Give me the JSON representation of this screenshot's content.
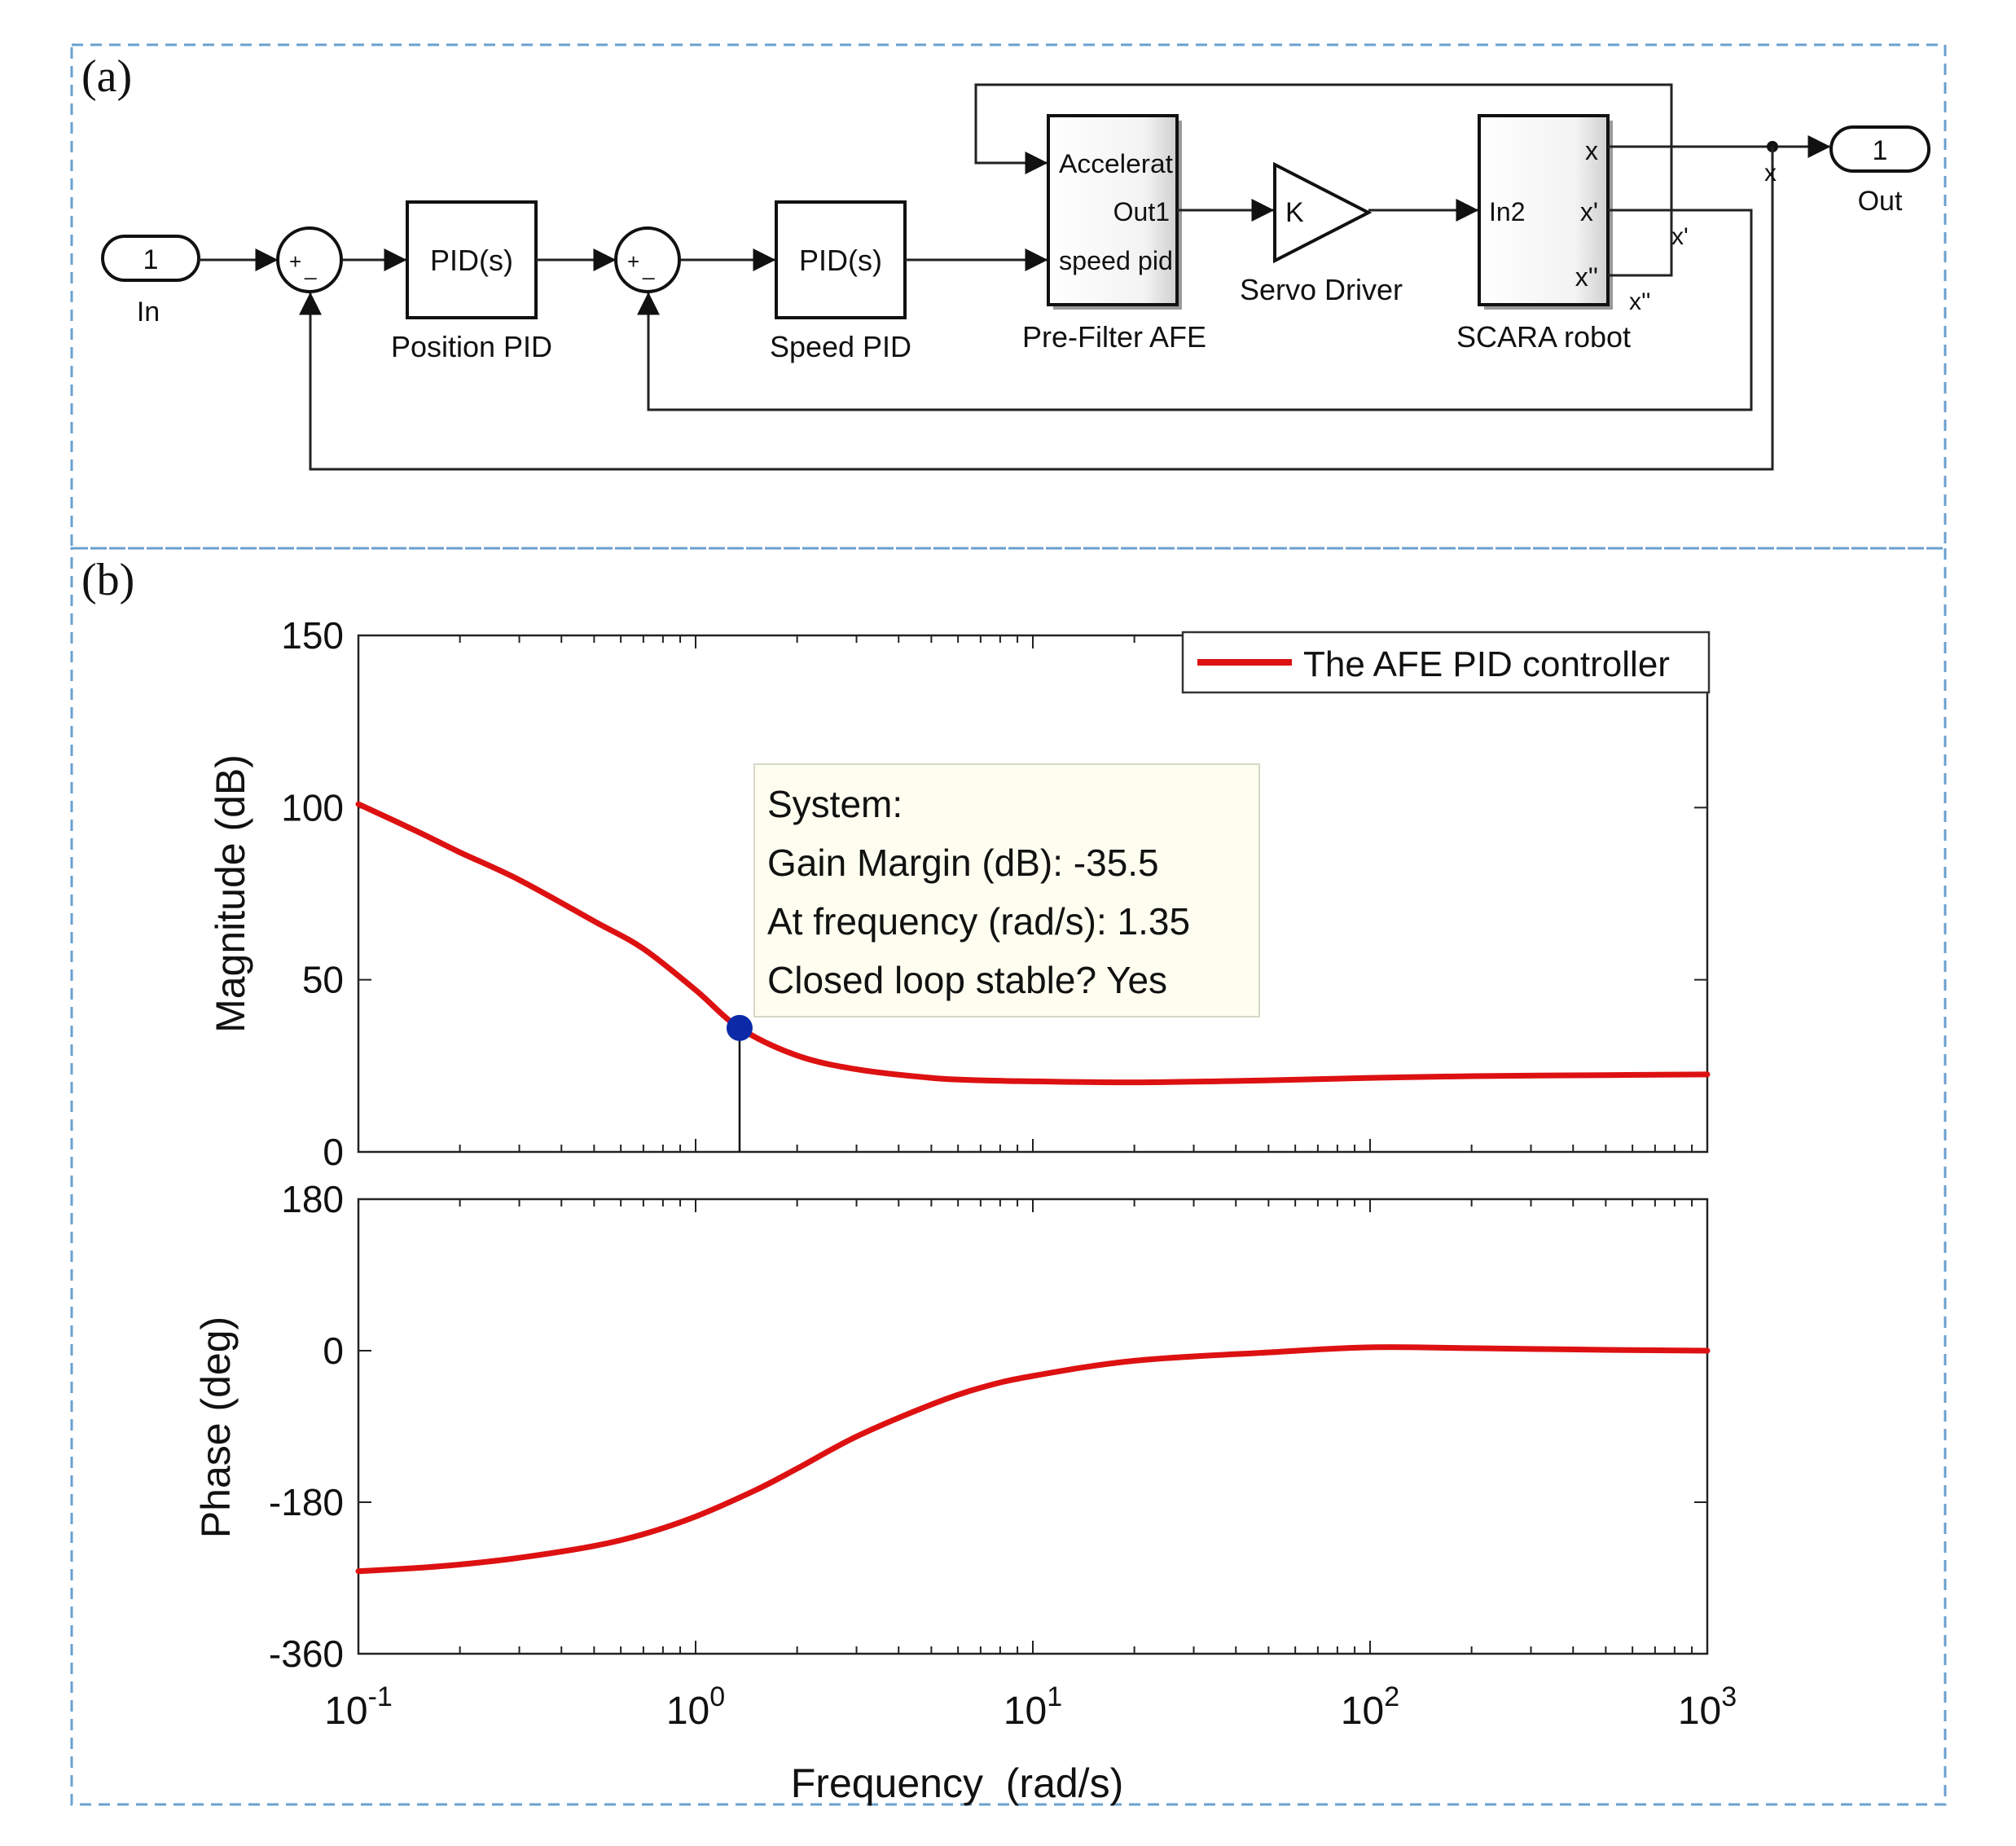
{
  "panel_a": {
    "label": "(a)",
    "inport": {
      "number": "1",
      "name": "In"
    },
    "sum1": {
      "plus": "+",
      "minus": "_"
    },
    "position_pid": {
      "text": "PID(s)",
      "name": "Position PID"
    },
    "sum2": {
      "plus": "+",
      "minus": "_"
    },
    "speed_pid": {
      "text": "PID(s)",
      "name": "Speed PID"
    },
    "prefilter": {
      "port_accel": "Accelerat",
      "port_out": "Out1",
      "port_speed": "speed pid",
      "name": "Pre-Filter AFE"
    },
    "gain": {
      "text": "K",
      "name": "Servo Driver"
    },
    "robot": {
      "port_in": "In2",
      "port_x": "x",
      "port_xp": "x'",
      "port_xpp": "x''",
      "name": "SCARA robot"
    },
    "signals": {
      "x": "x",
      "xp": "x'",
      "xpp": "x''"
    },
    "outport": {
      "number": "1",
      "name": "Out"
    }
  },
  "panel_b": {
    "label": "(b)",
    "legend": "The AFE PID controller",
    "datatip": {
      "line1": "System:",
      "line2": "Gain Margin (dB): -35.5",
      "line3": "At frequency (rad/s): 1.35",
      "line4": "Closed loop stable? Yes"
    }
  },
  "colors": {
    "curve": "#dd1111",
    "marker": "#0a2aa8",
    "frame_dash": "#6aa0cf",
    "datatip_bg": "#fdfdf0"
  },
  "chart_data": [
    {
      "type": "line",
      "title": "",
      "xlabel": "",
      "ylabel": "Magnitude (dB)",
      "xscale": "log",
      "xlim": [
        0.1,
        1000
      ],
      "ylim": [
        0,
        150
      ],
      "yticks": [
        "0",
        "50",
        "100",
        "150"
      ],
      "grid": false,
      "legend_position": "top-right",
      "series": [
        {
          "name": "The AFE PID controller",
          "x": [
            0.1,
            0.15,
            0.2,
            0.3,
            0.5,
            0.7,
            1.0,
            1.35,
            2.0,
            3.0,
            5.0,
            7.0,
            10,
            20,
            50,
            100,
            200,
            500,
            1000
          ],
          "y": [
            101,
            93,
            87,
            79,
            67,
            59,
            47,
            36,
            28,
            24,
            21.5,
            20.8,
            20.5,
            20.2,
            20.8,
            21.5,
            22,
            22.3,
            22.5
          ]
        }
      ],
      "marker": {
        "x": 1.35,
        "y": 36
      }
    },
    {
      "type": "line",
      "title": "",
      "xlabel": "Frequency  (rad/s)",
      "ylabel": "Phase (deg)",
      "xscale": "log",
      "xlim": [
        0.1,
        1000
      ],
      "ylim": [
        -360,
        180
      ],
      "yticks": [
        "-360",
        "-180",
        "0",
        "180"
      ],
      "xticks": [
        {
          "base": "10",
          "exp": "-1"
        },
        {
          "base": "10",
          "exp": "0"
        },
        {
          "base": "10",
          "exp": "1"
        },
        {
          "base": "10",
          "exp": "2"
        },
        {
          "base": "10",
          "exp": "3"
        }
      ],
      "grid": false,
      "series": [
        {
          "name": "The AFE PID controller",
          "x": [
            0.1,
            0.15,
            0.2,
            0.3,
            0.5,
            0.7,
            1.0,
            1.5,
            2.0,
            3.0,
            5.0,
            7.0,
            10,
            20,
            50,
            100,
            200,
            500,
            1000
          ],
          "y": [
            -262,
            -258,
            -254,
            -246,
            -232,
            -218,
            -197,
            -166,
            -140,
            -102,
            -64,
            -44,
            -30,
            -12,
            -2,
            4,
            3,
            1,
            0
          ]
        }
      ]
    }
  ]
}
